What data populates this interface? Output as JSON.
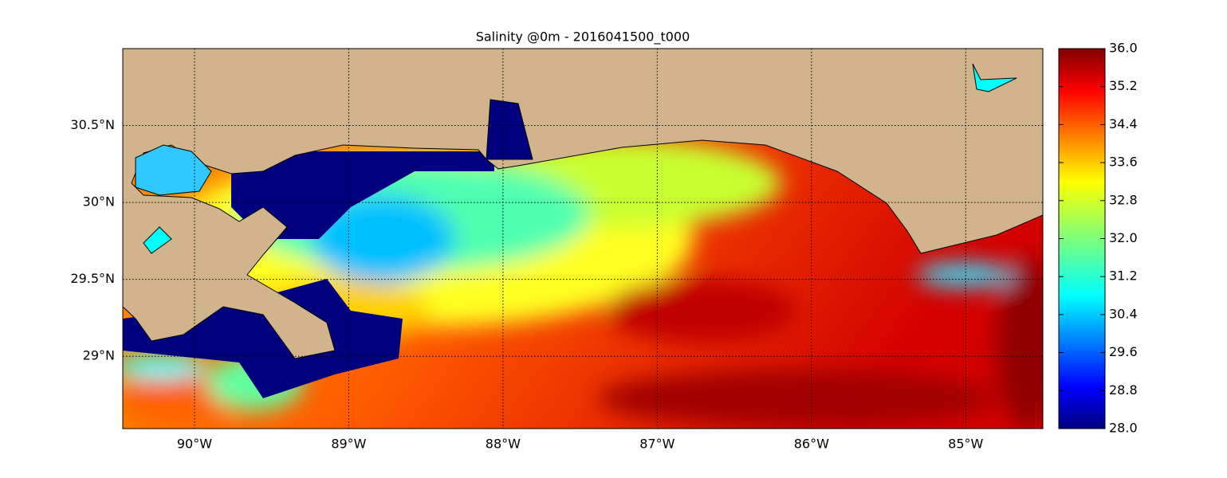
{
  "chart_data": {
    "type": "map",
    "title": "Salinity @0m - 2016041500_t000",
    "xlim": [
      -90.465,
      -84.5
    ],
    "ylim": [
      28.53,
      31.0
    ],
    "xticks": [
      {
        "value": -90,
        "label": "90°W"
      },
      {
        "value": -89,
        "label": "89°W"
      },
      {
        "value": -88,
        "label": "88°W"
      },
      {
        "value": -87,
        "label": "87°W"
      },
      {
        "value": -86,
        "label": "86°W"
      },
      {
        "value": -85,
        "label": "85°W"
      }
    ],
    "yticks": [
      {
        "value": 29,
        "label": "29°N"
      },
      {
        "value": 29.5,
        "label": "29.5°N"
      },
      {
        "value": 30,
        "label": "30°N"
      },
      {
        "value": 30.5,
        "label": "30.5°N"
      }
    ],
    "grid": true,
    "colorbar": {
      "colormap": "jet",
      "clim": [
        28,
        36
      ],
      "ticks": [
        {
          "value": 28,
          "label": "28.0"
        },
        {
          "value": 28.8,
          "label": "28.8"
        },
        {
          "value": 29.6,
          "label": "29.6"
        },
        {
          "value": 30.4,
          "label": "30.4"
        },
        {
          "value": 31.2,
          "label": "31.2"
        },
        {
          "value": 32,
          "label": "32.0"
        },
        {
          "value": 32.8,
          "label": "32.8"
        },
        {
          "value": 33.6,
          "label": "33.6"
        },
        {
          "value": 34.4,
          "label": "34.4"
        },
        {
          "value": 35.2,
          "label": "35.2"
        },
        {
          "value": 36,
          "label": "36.0"
        }
      ]
    }
  }
}
